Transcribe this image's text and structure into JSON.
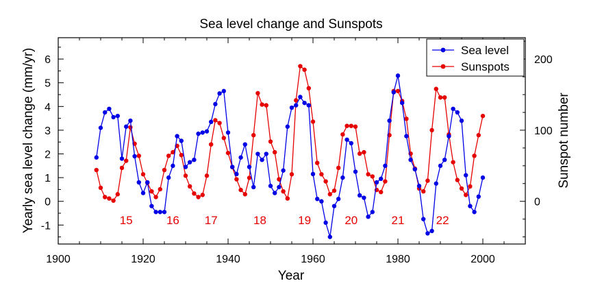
{
  "chart_data": {
    "type": "line",
    "title": "Sea level change and Sunspots",
    "xlabel": "Year",
    "ylabel_left": "Yearly sea level change (mm/yr)",
    "ylabel_right": "Sunspot number",
    "xlim": [
      1900,
      2010
    ],
    "ylim_left": [
      -1.8,
      6.9
    ],
    "ylim_right": [
      -60,
      230
    ],
    "x_ticks": [
      "1900",
      "1920",
      "1940",
      "1960",
      "1980",
      "2000"
    ],
    "y_left_ticks": [
      "-1",
      "0",
      "1",
      "2",
      "3",
      "4",
      "5",
      "6"
    ],
    "y_right_ticks": [
      "0",
      "100",
      "200"
    ],
    "legend_position": "top-right",
    "grid": false,
    "colors": {
      "sea_level": "#0000e6",
      "sunspots": "#e60000",
      "cycle_labels": "#e60000"
    },
    "series": [
      {
        "name": "Sea level",
        "axis": "left",
        "x": [
          1909,
          1910,
          1911,
          1912,
          1913,
          1914,
          1915,
          1916,
          1917,
          1918,
          1919,
          1920,
          1921,
          1922,
          1923,
          1924,
          1925,
          1926,
          1927,
          1928,
          1929,
          1930,
          1931,
          1932,
          1933,
          1934,
          1935,
          1936,
          1937,
          1938,
          1939,
          1940,
          1941,
          1942,
          1943,
          1944,
          1945,
          1946,
          1947,
          1948,
          1949,
          1950,
          1951,
          1952,
          1953,
          1954,
          1955,
          1956,
          1957,
          1958,
          1959,
          1960,
          1961,
          1962,
          1963,
          1964,
          1965,
          1966,
          1967,
          1968,
          1969,
          1970,
          1971,
          1972,
          1973,
          1974,
          1975,
          1976,
          1977,
          1978,
          1979,
          1980,
          1981,
          1982,
          1983,
          1984,
          1985,
          1986,
          1987,
          1988,
          1989,
          1990,
          1991,
          1992,
          1993,
          1994,
          1995,
          1996,
          1997,
          1998,
          1999,
          2000
        ],
        "y": [
          1.85,
          3.1,
          3.75,
          3.9,
          3.55,
          3.6,
          1.8,
          3.15,
          3.4,
          1.9,
          0.8,
          0.35,
          0.8,
          -0.2,
          -0.45,
          -0.45,
          -0.45,
          1.0,
          1.5,
          2.75,
          2.55,
          1.45,
          1.65,
          1.75,
          2.85,
          2.9,
          2.95,
          3.35,
          4.1,
          4.55,
          4.65,
          2.9,
          1.45,
          1.15,
          1.85,
          2.4,
          1.45,
          0.6,
          2.0,
          1.75,
          2.0,
          0.65,
          0.35,
          0.6,
          1.3,
          3.15,
          3.95,
          4.05,
          4.4,
          4.15,
          4.05,
          1.15,
          0.1,
          0.0,
          -0.9,
          -1.5,
          -0.2,
          0.1,
          1.0,
          2.6,
          2.45,
          1.25,
          0.25,
          0.15,
          -0.65,
          -0.45,
          0.8,
          0.95,
          1.5,
          3.4,
          4.6,
          5.3,
          4.15,
          2.75,
          1.75,
          1.35,
          0.65,
          -0.75,
          -1.35,
          -1.25,
          0.75,
          1.5,
          1.75,
          2.75,
          3.9,
          3.75,
          3.4,
          1.1,
          -0.2,
          -0.45,
          0.2,
          1.0
        ]
      },
      {
        "name": "Sunspots",
        "axis": "right",
        "x": [
          1909,
          1910,
          1911,
          1912,
          1913,
          1914,
          1915,
          1916,
          1917,
          1918,
          1919,
          1920,
          1921,
          1922,
          1923,
          1924,
          1925,
          1926,
          1927,
          1928,
          1929,
          1930,
          1931,
          1932,
          1933,
          1934,
          1935,
          1936,
          1937,
          1938,
          1939,
          1940,
          1941,
          1942,
          1943,
          1944,
          1945,
          1946,
          1947,
          1948,
          1949,
          1950,
          1951,
          1952,
          1953,
          1954,
          1955,
          1956,
          1957,
          1958,
          1959,
          1960,
          1961,
          1962,
          1963,
          1964,
          1965,
          1966,
          1967,
          1968,
          1969,
          1970,
          1971,
          1972,
          1973,
          1974,
          1975,
          1976,
          1977,
          1978,
          1979,
          1980,
          1981,
          1982,
          1983,
          1984,
          1985,
          1986,
          1987,
          1988,
          1989,
          1990,
          1991,
          1992,
          1993,
          1994,
          1995,
          1996,
          1997,
          1998,
          1999,
          2000
        ],
        "y": [
          44,
          19,
          6,
          4,
          1,
          10,
          47,
          57,
          104,
          81,
          64,
          38,
          26,
          14,
          6,
          17,
          44,
          64,
          69,
          78,
          65,
          36,
          21,
          11,
          6,
          9,
          36,
          80,
          114,
          110,
          89,
          68,
          48,
          31,
          16,
          10,
          33,
          93,
          152,
          136,
          135,
          84,
          69,
          31,
          14,
          4,
          38,
          142,
          190,
          185,
          159,
          112,
          54,
          38,
          28,
          10,
          15,
          47,
          94,
          106,
          106,
          105,
          67,
          69,
          38,
          35,
          16,
          13,
          28,
          93,
          155,
          155,
          141,
          116,
          67,
          46,
          18,
          14,
          29,
          100,
          158,
          146,
          146,
          94,
          55,
          30,
          18,
          9,
          21,
          64,
          93,
          120
        ]
      }
    ],
    "annotations": [
      "15",
      "16",
      "17",
      "18",
      "19",
      "20",
      "21",
      "22"
    ],
    "annotation_x": [
      1916,
      1927,
      1936,
      1947.5,
      1958,
      1969,
      1980,
      1990.5
    ]
  }
}
